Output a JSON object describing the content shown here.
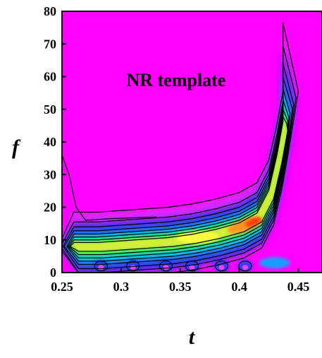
{
  "chart_data": {
    "type": "heatmap",
    "title": "",
    "xlabel": "t",
    "ylabel": "f",
    "xlim": [
      0.25,
      0.47
    ],
    "ylim": [
      0,
      80
    ],
    "x_ticks": [
      0.25,
      0.3,
      0.35,
      0.4,
      0.45
    ],
    "x_tick_labels": [
      "0.25",
      "0.3",
      "0.35",
      "0.4",
      "0.45"
    ],
    "y_ticks": [
      0,
      10,
      20,
      30,
      40,
      50,
      60,
      70,
      80
    ],
    "y_tick_labels": [
      "0",
      "10",
      "20",
      "30",
      "40",
      "50",
      "60",
      "70",
      "80"
    ],
    "annotation": "NR template",
    "colorscale": [
      "#ff33ff",
      "#3333ff",
      "#00c8ff",
      "#33ff66",
      "#ffff33",
      "#ff3300"
    ],
    "background_color": "#ff00ff",
    "grid": false,
    "ridge": [
      {
        "t": 0.26,
        "f": 8
      },
      {
        "t": 0.28,
        "f": 8
      },
      {
        "t": 0.3,
        "f": 8.5
      },
      {
        "t": 0.32,
        "f": 9
      },
      {
        "t": 0.34,
        "f": 9.5
      },
      {
        "t": 0.36,
        "f": 10.5
      },
      {
        "t": 0.38,
        "f": 12
      },
      {
        "t": 0.4,
        "f": 14
      },
      {
        "t": 0.415,
        "f": 17
      },
      {
        "t": 0.425,
        "f": 24
      },
      {
        "t": 0.432,
        "f": 35
      },
      {
        "t": 0.437,
        "f": 45
      }
    ]
  }
}
